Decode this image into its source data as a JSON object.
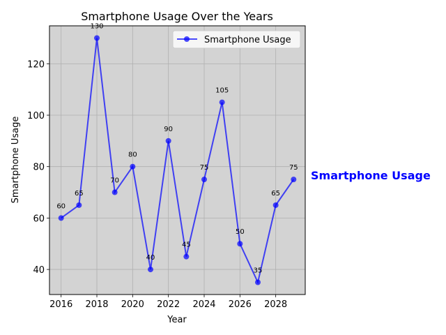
{
  "chart_data": {
    "type": "line",
    "title": "Smartphone Usage Over the Years",
    "xlabel": "Year",
    "ylabel": "Smartphone Usage",
    "x": [
      2016,
      2017,
      2018,
      2019,
      2020,
      2021,
      2022,
      2023,
      2024,
      2025,
      2026,
      2027,
      2028,
      2029
    ],
    "series": [
      {
        "name": "Smartphone Usage",
        "values": [
          60,
          65,
          130,
          70,
          80,
          40,
          90,
          45,
          75,
          105,
          50,
          35,
          65,
          75
        ],
        "color": "#0000ff"
      }
    ],
    "data_labels": [
      "60",
      "65",
      "130",
      "70",
      "80",
      "40",
      "90",
      "45",
      "75",
      "105",
      "50",
      "35",
      "65",
      "75"
    ],
    "xlim": [
      2015.35,
      2029.65
    ],
    "ylim": [
      30.25,
      134.75
    ],
    "xticks": [
      2016,
      2018,
      2020,
      2022,
      2024,
      2026,
      2028
    ],
    "xtick_labels": [
      "2016",
      "2018",
      "2020",
      "2022",
      "2024",
      "2026",
      "2028"
    ],
    "yticks": [
      40,
      60,
      80,
      100,
      120
    ],
    "ytick_labels": [
      "40",
      "60",
      "80",
      "100",
      "120"
    ],
    "grid": true,
    "legend": "top-right",
    "plot_background": "#d3d3d3",
    "side_annotation": "Smartphone Usage",
    "side_annotation_color": "#0000ff"
  }
}
